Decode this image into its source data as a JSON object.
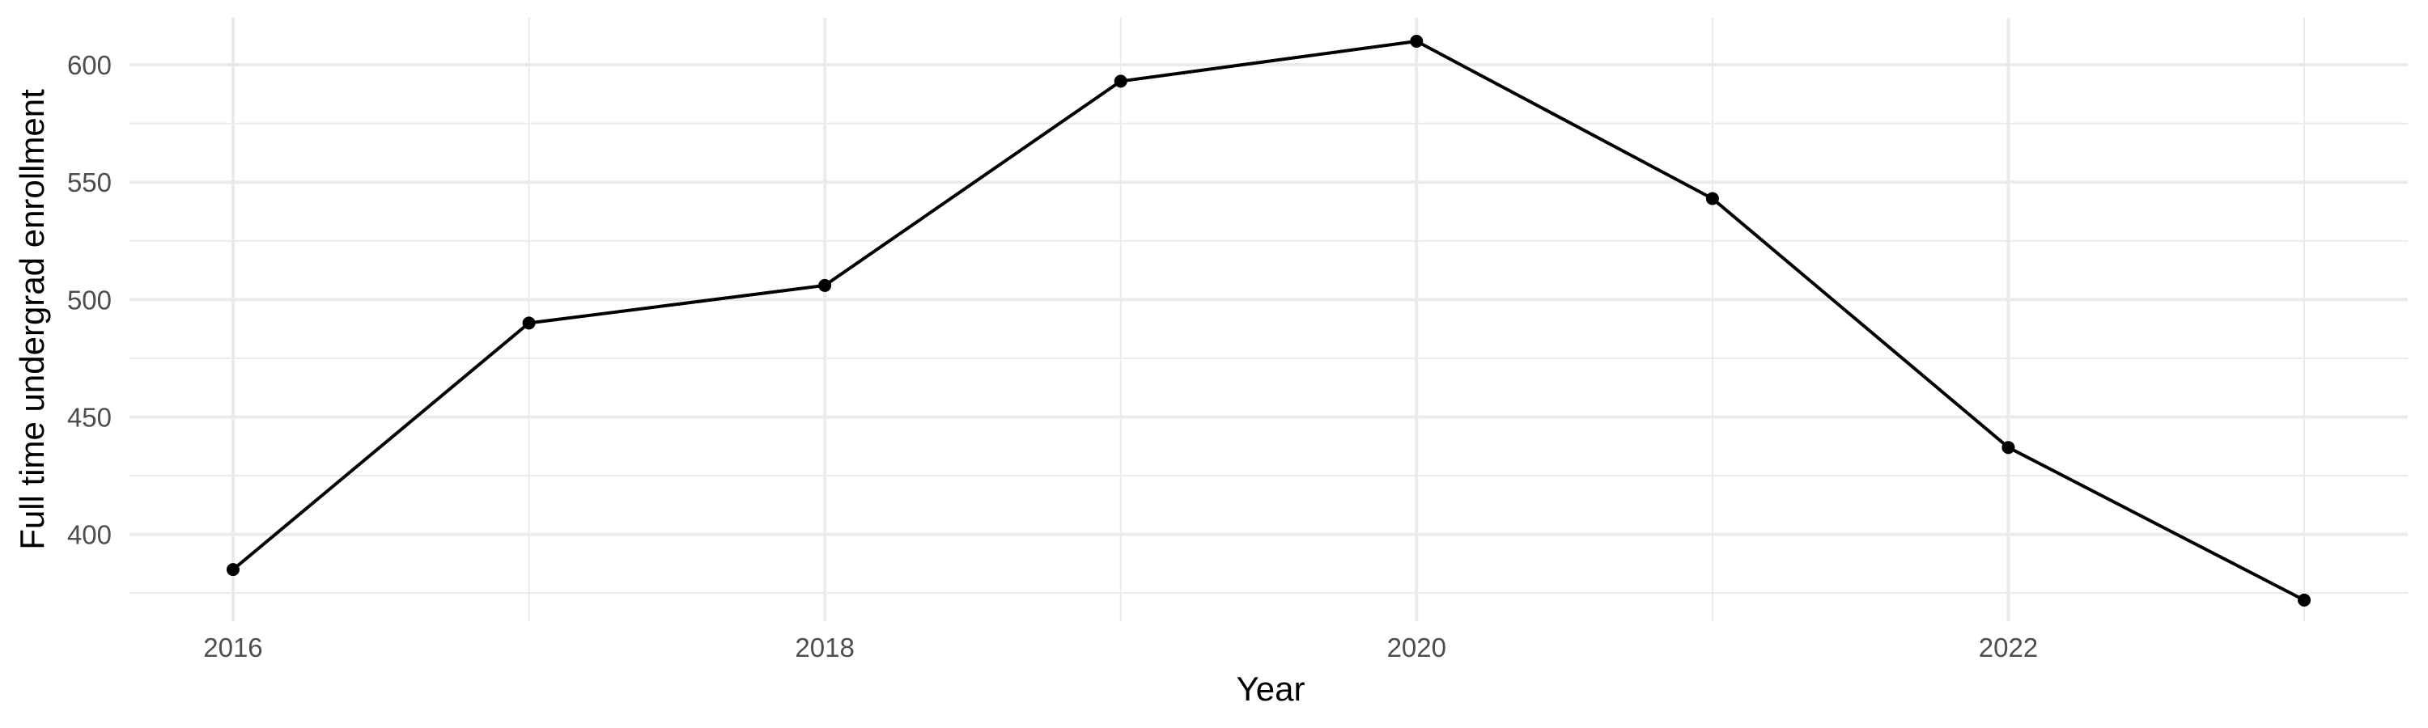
{
  "chart_data": {
    "type": "line",
    "title": "",
    "xlabel": "Year",
    "ylabel": "Full time undergrad enrollment",
    "x": [
      2016,
      2017,
      2018,
      2019,
      2020,
      2021,
      2022,
      2023
    ],
    "series": [
      {
        "values": [
          385,
          490,
          506,
          593,
          610,
          543,
          437,
          372
        ]
      }
    ],
    "xlim": [
      2015.65,
      2023.35
    ],
    "ylim": [
      363,
      620
    ],
    "x_ticks": [
      2016,
      2018,
      2020,
      2022
    ],
    "x_tick_labels": [
      "2016",
      "2018",
      "2020",
      "2022"
    ],
    "y_ticks": [
      400,
      450,
      500,
      550,
      600
    ],
    "y_tick_labels": [
      "400",
      "450",
      "500",
      "550",
      "600"
    ],
    "grid": true,
    "legend": "none",
    "line_color": "#000000",
    "grid_color": "#ebebeb"
  }
}
